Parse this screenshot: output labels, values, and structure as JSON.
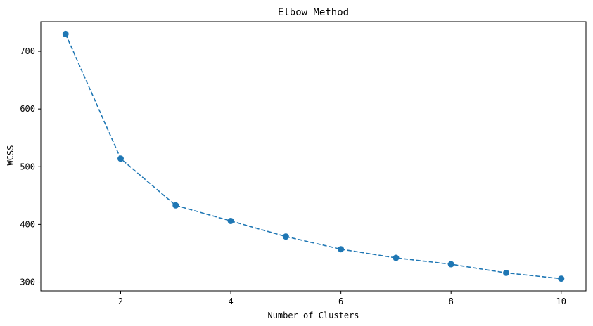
{
  "chart_data": {
    "type": "line",
    "title": "Elbow Method",
    "xlabel": "Number of Clusters",
    "ylabel": "WCSS",
    "x": [
      1,
      2,
      3,
      4,
      5,
      6,
      7,
      8,
      9,
      10
    ],
    "series": [
      {
        "values": [
          730,
          514,
          433,
          406,
          379,
          357,
          342,
          331,
          316,
          306
        ],
        "color": "#1f77b4",
        "line_style": "dashed",
        "marker": "circle"
      }
    ],
    "xlim": [
      0.55,
      10.45
    ],
    "ylim": [
      284.8,
      751.2
    ],
    "xticks": [
      2,
      4,
      6,
      8,
      10
    ],
    "yticks": [
      300,
      400,
      500,
      600,
      700
    ],
    "xtick_labels": [
      "2",
      "4",
      "6",
      "8",
      "10"
    ],
    "ytick_labels": [
      "300",
      "400",
      "500",
      "600",
      "700"
    ],
    "grid": false,
    "legend": "none"
  }
}
